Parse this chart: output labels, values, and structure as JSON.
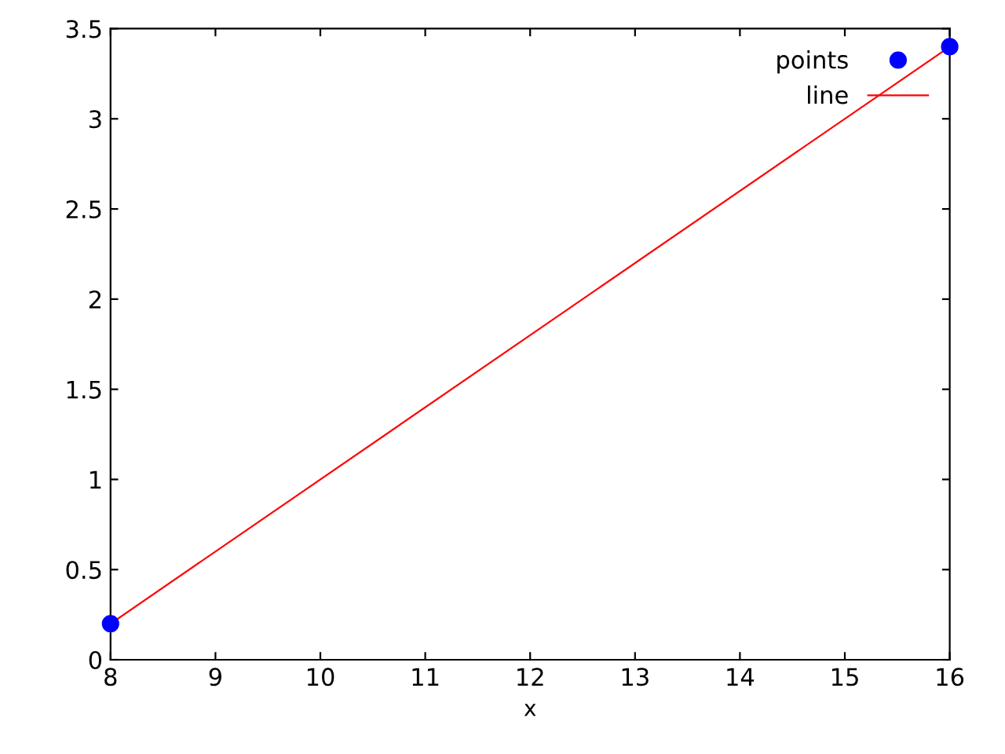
{
  "chart_data": {
    "type": "scatter",
    "xlabel": "x",
    "x": [
      8,
      16
    ],
    "series": [
      {
        "name": "points",
        "color": "#0000ff",
        "values": [
          0.2,
          3.4
        ],
        "marker": "circle"
      },
      {
        "name": "line",
        "type": "line",
        "color": "#ff0000",
        "values": [
          0.2,
          3.4
        ],
        "marker": "none",
        "line_style": "solid"
      }
    ],
    "xlim": [
      8,
      16
    ],
    "xticks": [
      8,
      9,
      10,
      11,
      12,
      13,
      14,
      15,
      16
    ],
    "ylim": [
      0,
      3.5
    ],
    "yticks": [
      0,
      0.5,
      1,
      1.5,
      2,
      2.5,
      3,
      3.5
    ],
    "grid": false,
    "legend": "top right"
  }
}
